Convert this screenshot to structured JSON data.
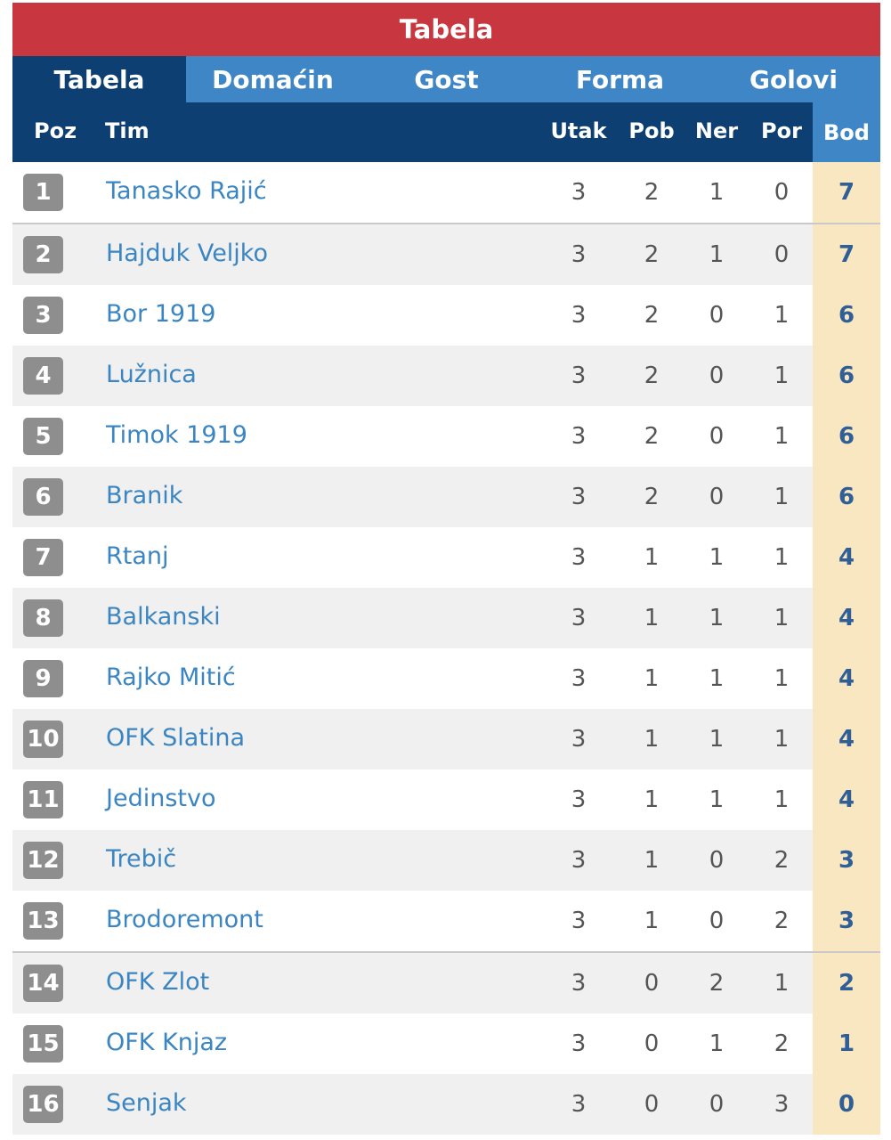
{
  "title": "Tabela",
  "tabs": [
    {
      "label": "Tabela",
      "active": true
    },
    {
      "label": "Domaćin",
      "active": false
    },
    {
      "label": "Gost",
      "active": false
    },
    {
      "label": "Forma",
      "active": false
    },
    {
      "label": "Golovi",
      "active": false
    }
  ],
  "columns": {
    "poz": "Poz",
    "tim": "Tim",
    "utak": "Utak",
    "pob": "Pob",
    "ner": "Ner",
    "por": "Por",
    "bod": "Bod"
  },
  "colors": {
    "title_bg": "#c8363f",
    "tab_bg": "#3e86c6",
    "header_bg": "#0d3f72",
    "points_bg": "#f9e7c1",
    "team_link": "#3a85c2"
  },
  "rows": [
    {
      "pos": "1",
      "team": "Tanasko Rajić",
      "utak": "3",
      "pob": "2",
      "ner": "1",
      "por": "0",
      "bod": "7"
    },
    {
      "pos": "2",
      "team": "Hajduk Veljko",
      "utak": "3",
      "pob": "2",
      "ner": "1",
      "por": "0",
      "bod": "7"
    },
    {
      "pos": "3",
      "team": "Bor 1919",
      "utak": "3",
      "pob": "2",
      "ner": "0",
      "por": "1",
      "bod": "6"
    },
    {
      "pos": "4",
      "team": "Lužnica",
      "utak": "3",
      "pob": "2",
      "ner": "0",
      "por": "1",
      "bod": "6"
    },
    {
      "pos": "5",
      "team": "Timok 1919",
      "utak": "3",
      "pob": "2",
      "ner": "0",
      "por": "1",
      "bod": "6"
    },
    {
      "pos": "6",
      "team": "Branik",
      "utak": "3",
      "pob": "2",
      "ner": "0",
      "por": "1",
      "bod": "6"
    },
    {
      "pos": "7",
      "team": "Rtanj",
      "utak": "3",
      "pob": "1",
      "ner": "1",
      "por": "1",
      "bod": "4"
    },
    {
      "pos": "8",
      "team": "Balkanski",
      "utak": "3",
      "pob": "1",
      "ner": "1",
      "por": "1",
      "bod": "4"
    },
    {
      "pos": "9",
      "team": "Rajko Mitić",
      "utak": "3",
      "pob": "1",
      "ner": "1",
      "por": "1",
      "bod": "4"
    },
    {
      "pos": "10",
      "team": "OFK Slatina",
      "utak": "3",
      "pob": "1",
      "ner": "1",
      "por": "1",
      "bod": "4"
    },
    {
      "pos": "11",
      "team": "Jedinstvo",
      "utak": "3",
      "pob": "1",
      "ner": "1",
      "por": "1",
      "bod": "4"
    },
    {
      "pos": "12",
      "team": "Trebič",
      "utak": "3",
      "pob": "1",
      "ner": "0",
      "por": "2",
      "bod": "3"
    },
    {
      "pos": "13",
      "team": "Brodoremont",
      "utak": "3",
      "pob": "1",
      "ner": "0",
      "por": "2",
      "bod": "3"
    },
    {
      "pos": "14",
      "team": "OFK Zlot",
      "utak": "3",
      "pob": "0",
      "ner": "2",
      "por": "1",
      "bod": "2"
    },
    {
      "pos": "15",
      "team": "OFK Knjaz",
      "utak": "3",
      "pob": "0",
      "ner": "1",
      "por": "2",
      "bod": "1"
    },
    {
      "pos": "16",
      "team": "Senjak",
      "utak": "3",
      "pob": "0",
      "ner": "0",
      "por": "3",
      "bod": "0"
    }
  ]
}
